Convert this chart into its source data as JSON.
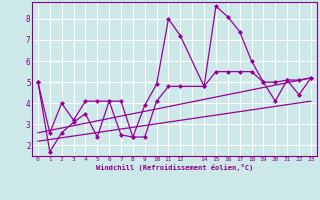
{
  "xlabel": "Windchill (Refroidissement éolien,°C)",
  "bg_color": "#cce8e8",
  "grid_color": "#ffffff",
  "line_color": "#990099",
  "xlim": [
    -0.5,
    23.5
  ],
  "ylim": [
    1.5,
    8.8
  ],
  "yticks": [
    2,
    3,
    4,
    5,
    6,
    7,
    8
  ],
  "xtick_labels": [
    "0",
    "1",
    "2",
    "3",
    "4",
    "5",
    "6",
    "7",
    "8",
    "9",
    "10",
    "11",
    "12",
    "",
    "14",
    "15",
    "16",
    "17",
    "18",
    "19",
    "20",
    "21",
    "22",
    "23"
  ],
  "series": [
    {
      "x": [
        0,
        1,
        2,
        3,
        4,
        5,
        6,
        7,
        8,
        9,
        10,
        11,
        12,
        14,
        15,
        16,
        17,
        18,
        19,
        20,
        21,
        22,
        23
      ],
      "y": [
        5.0,
        2.6,
        4.0,
        3.2,
        4.1,
        4.1,
        4.1,
        2.5,
        2.4,
        3.9,
        4.9,
        8.0,
        7.2,
        4.8,
        8.6,
        8.1,
        7.4,
        6.0,
        5.0,
        4.1,
        5.1,
        4.4,
        5.2
      ]
    },
    {
      "x": [
        0,
        1,
        2,
        3,
        4,
        5,
        6,
        7,
        8,
        9,
        10,
        11,
        12,
        14,
        15,
        16,
        17,
        18,
        19,
        20,
        21,
        22,
        23
      ],
      "y": [
        5.0,
        1.7,
        2.6,
        3.1,
        3.5,
        2.4,
        4.1,
        4.1,
        2.4,
        2.4,
        4.1,
        4.8,
        4.8,
        4.8,
        5.5,
        5.5,
        5.5,
        5.5,
        5.0,
        5.0,
        5.1,
        5.1,
        5.2
      ]
    },
    {
      "x": [
        0,
        23
      ],
      "y": [
        2.2,
        4.1
      ]
    },
    {
      "x": [
        0,
        23
      ],
      "y": [
        2.6,
        5.2
      ]
    }
  ]
}
